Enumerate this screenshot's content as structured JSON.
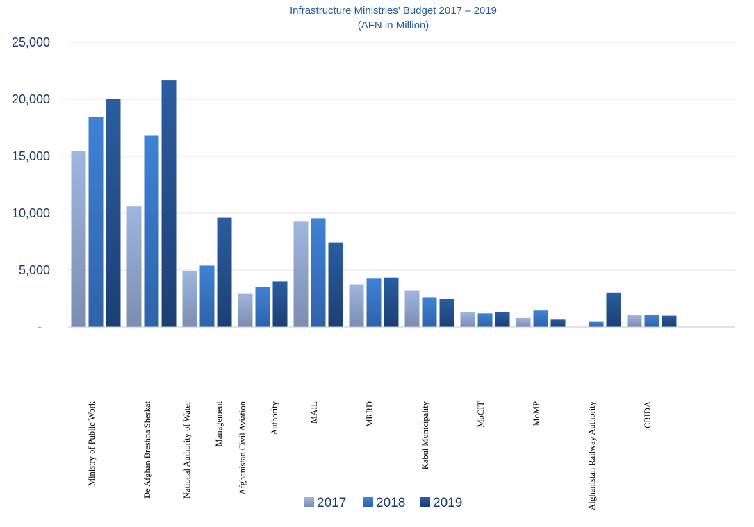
{
  "chart_data": {
    "type": "bar",
    "title_lines": [
      "Infrastructure Ministries’ Budget 2017 – 2019",
      "(AFN in Million)"
    ],
    "ylim": [
      0,
      25000
    ],
    "y_ticks": [
      0,
      5000,
      10000,
      15000,
      20000,
      25000
    ],
    "y_tick_labels": [
      "-",
      "5,000",
      "10,000",
      "15,000",
      "20,000",
      "25,000"
    ],
    "grid": true,
    "legend_position": "bottom",
    "category_labels": [
      [
        "Ministry of Public Work"
      ],
      [
        "De Afghan Breshna Sherkat"
      ],
      [
        "National Authority of Water",
        "Management"
      ],
      [
        "Afghanistan Civil Aviation",
        "Authority"
      ],
      [
        "MAIL"
      ],
      [
        "MRRD"
      ],
      [
        "Kabul Municipality"
      ],
      [
        "MoCIT"
      ],
      [
        "MoMP"
      ],
      [
        "Afghanistan Railway Authority"
      ],
      [
        "CRIDA"
      ],
      [
        ""
      ]
    ],
    "series": [
      {
        "name": "2017",
        "color": "#8ea9d8",
        "values": [
          15450,
          10600,
          4900,
          2950,
          9250,
          3750,
          3200,
          1300,
          800,
          0,
          1050
        ]
      },
      {
        "name": "2018",
        "color": "#3876c8",
        "values": [
          18450,
          16800,
          5400,
          3500,
          9550,
          4250,
          2600,
          1200,
          1450,
          450,
          1050
        ]
      },
      {
        "name": "2019",
        "color": "#1f4e8c",
        "values": [
          20050,
          21700,
          9600,
          4000,
          7400,
          4350,
          2450,
          1300,
          650,
          3000,
          1000
        ]
      }
    ]
  }
}
